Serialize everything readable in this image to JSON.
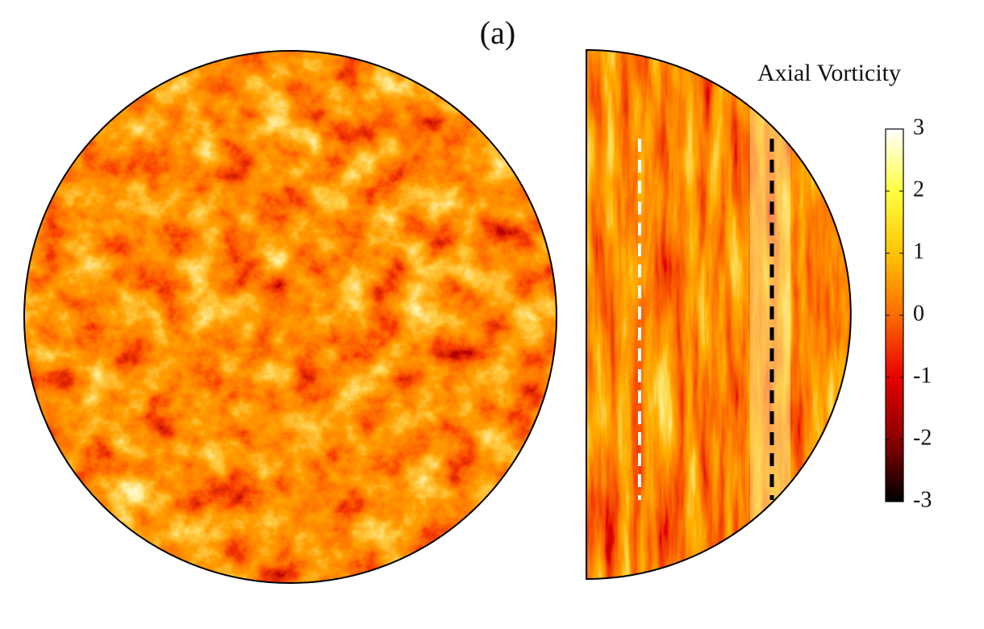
{
  "chart_data": {
    "type": "heatmap",
    "title": "(a)",
    "colorbar_label": "Axial Vorticity",
    "clim": [
      -3,
      3
    ],
    "cticks": [
      -3,
      -2,
      -1,
      0,
      1,
      2,
      3
    ],
    "colormap": [
      "#000000",
      "#8b0000",
      "#e60000",
      "#ff6a00",
      "#ffc400",
      "#ffff40",
      "#ffffff"
    ]
  }
}
